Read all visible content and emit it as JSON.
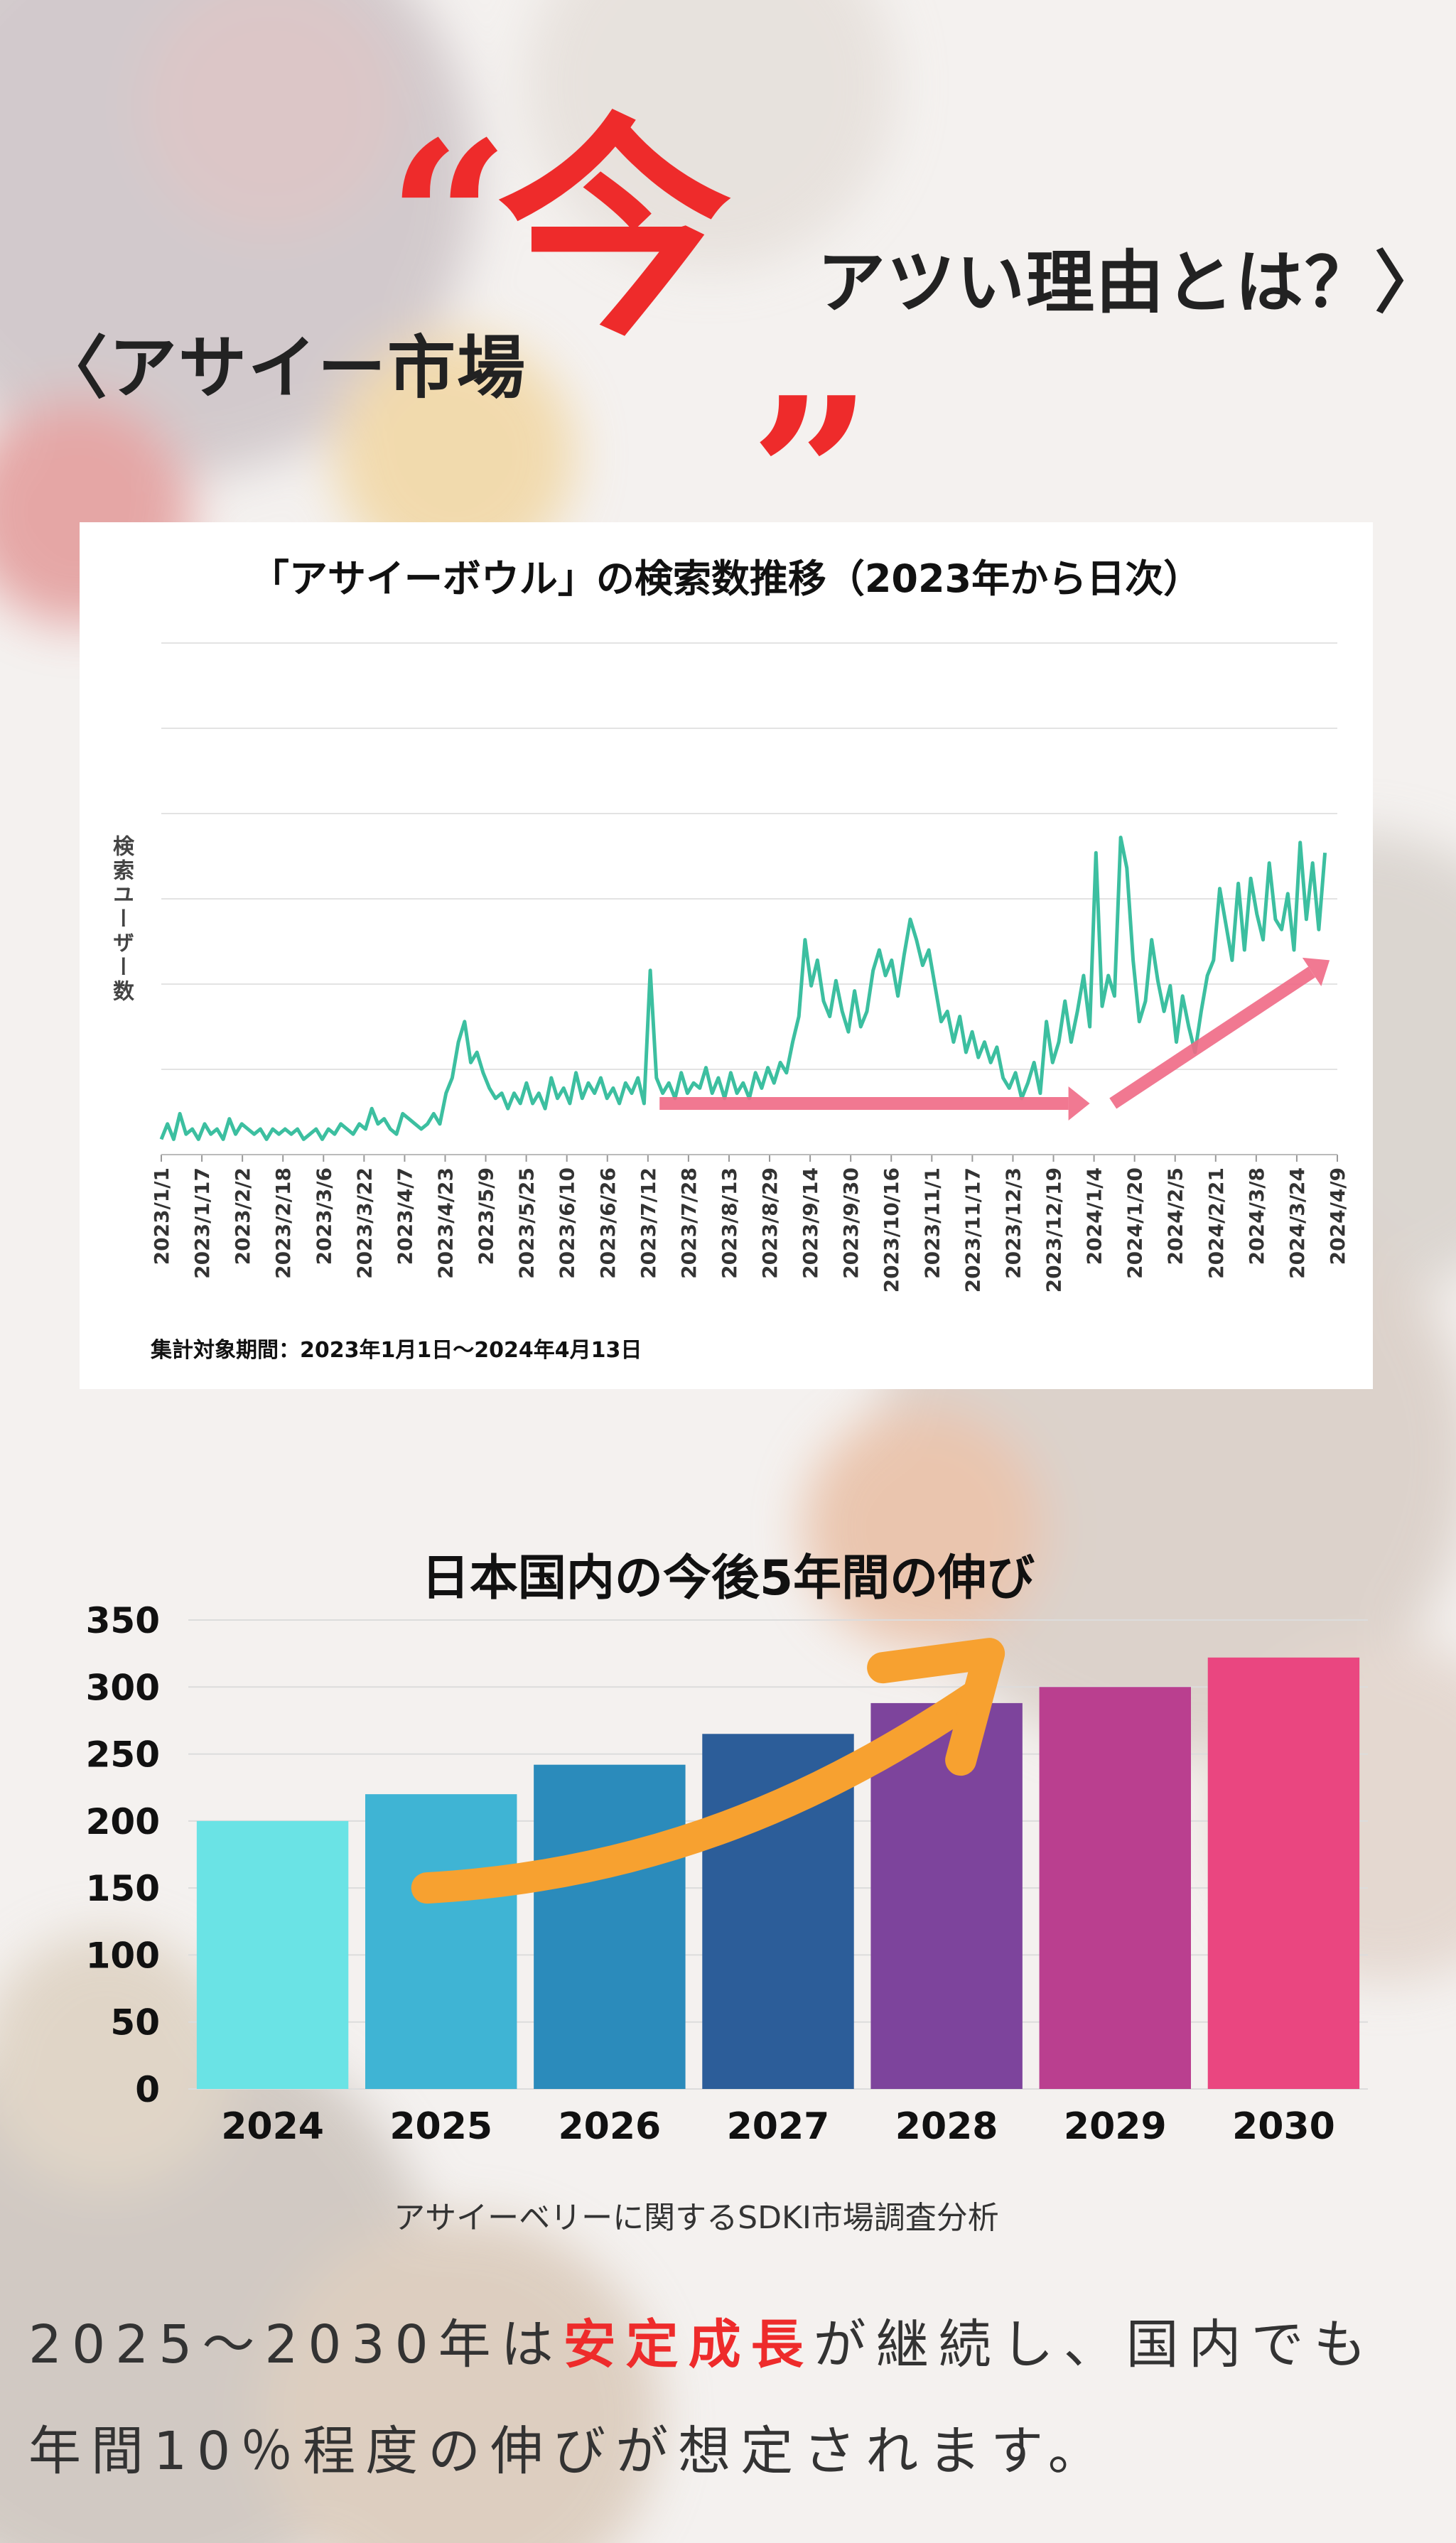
{
  "headline": {
    "left": "〈アサイー市場",
    "open_quote": "“",
    "big": "今",
    "close_quote": "”",
    "right": "アツい理由とは？〉"
  },
  "chart_data": [
    {
      "type": "line",
      "title": "「アサイーボウル」の検索数推移（2023年から日次）",
      "ylabel": "検索ユーザー数",
      "x_ticks": [
        "2023/1/1",
        "2023/1/17",
        "2023/2/2",
        "2023/2/18",
        "2023/3/6",
        "2023/3/22",
        "2023/4/7",
        "2023/4/23",
        "2023/5/9",
        "2023/5/25",
        "2023/6/10",
        "2023/6/26",
        "2023/7/12",
        "2023/7/28",
        "2023/8/13",
        "2023/8/29",
        "2023/9/14",
        "2023/9/30",
        "2023/10/16",
        "2023/11/1",
        "2023/11/17",
        "2023/12/3",
        "2023/12/19",
        "2024/1/4",
        "2024/1/20",
        "2024/2/5",
        "2024/2/21",
        "2024/3/8",
        "2024/3/24",
        "2024/4/9"
      ],
      "ylim": [
        0,
        100
      ],
      "grid": true,
      "series_color": "#3cbfa0",
      "trend_color": "#f06a86",
      "footnote": "集計対象期間：2023年1月1日～2024年4月13日",
      "series": [
        {
          "points": [
            [
              0,
              3
            ],
            [
              4,
              6
            ],
            [
              8,
              3
            ],
            [
              12,
              8
            ],
            [
              16,
              4
            ],
            [
              20,
              5
            ],
            [
              24,
              3
            ],
            [
              28,
              6
            ],
            [
              32,
              4
            ],
            [
              36,
              5
            ],
            [
              40,
              3
            ],
            [
              44,
              7
            ],
            [
              48,
              4
            ],
            [
              52,
              6
            ],
            [
              56,
              5
            ],
            [
              60,
              4
            ],
            [
              64,
              5
            ],
            [
              68,
              3
            ],
            [
              72,
              5
            ],
            [
              76,
              4
            ],
            [
              80,
              5
            ],
            [
              84,
              4
            ],
            [
              88,
              5
            ],
            [
              92,
              3
            ],
            [
              96,
              4
            ],
            [
              100,
              5
            ],
            [
              104,
              3
            ],
            [
              108,
              5
            ],
            [
              112,
              4
            ],
            [
              116,
              6
            ],
            [
              120,
              5
            ],
            [
              124,
              4
            ],
            [
              128,
              6
            ],
            [
              132,
              5
            ],
            [
              136,
              9
            ],
            [
              140,
              6
            ],
            [
              144,
              7
            ],
            [
              148,
              5
            ],
            [
              152,
              4
            ],
            [
              156,
              8
            ],
            [
              160,
              7
            ],
            [
              164,
              6
            ],
            [
              168,
              5
            ],
            [
              172,
              6
            ],
            [
              176,
              8
            ],
            [
              180,
              6
            ],
            [
              184,
              12
            ],
            [
              188,
              15
            ],
            [
              192,
              22
            ],
            [
              196,
              26
            ],
            [
              200,
              18
            ],
            [
              204,
              20
            ],
            [
              208,
              16
            ],
            [
              212,
              13
            ],
            [
              216,
              11
            ],
            [
              220,
              12
            ],
            [
              224,
              9
            ],
            [
              228,
              12
            ],
            [
              232,
              10
            ],
            [
              236,
              14
            ],
            [
              240,
              10
            ],
            [
              244,
              12
            ],
            [
              248,
              9
            ],
            [
              252,
              15
            ],
            [
              256,
              11
            ],
            [
              260,
              13
            ],
            [
              264,
              10
            ],
            [
              268,
              16
            ],
            [
              272,
              11
            ],
            [
              276,
              14
            ],
            [
              280,
              12
            ],
            [
              284,
              15
            ],
            [
              288,
              11
            ],
            [
              292,
              13
            ],
            [
              296,
              10
            ],
            [
              300,
              14
            ],
            [
              304,
              12
            ],
            [
              308,
              15
            ],
            [
              312,
              10
            ],
            [
              316,
              36
            ],
            [
              320,
              15
            ],
            [
              324,
              12
            ],
            [
              328,
              14
            ],
            [
              332,
              11
            ],
            [
              336,
              16
            ],
            [
              340,
              12
            ],
            [
              344,
              14
            ],
            [
              348,
              13
            ],
            [
              352,
              17
            ],
            [
              356,
              12
            ],
            [
              360,
              15
            ],
            [
              364,
              11
            ],
            [
              368,
              16
            ],
            [
              372,
              12
            ],
            [
              376,
              14
            ],
            [
              380,
              11
            ],
            [
              384,
              16
            ],
            [
              388,
              13
            ],
            [
              392,
              17
            ],
            [
              396,
              14
            ],
            [
              400,
              18
            ],
            [
              404,
              16
            ],
            [
              408,
              22
            ],
            [
              412,
              27
            ],
            [
              416,
              42
            ],
            [
              420,
              33
            ],
            [
              424,
              38
            ],
            [
              428,
              30
            ],
            [
              432,
              27
            ],
            [
              436,
              34
            ],
            [
              440,
              28
            ],
            [
              444,
              24
            ],
            [
              448,
              32
            ],
            [
              452,
              25
            ],
            [
              456,
              28
            ],
            [
              460,
              36
            ],
            [
              464,
              40
            ],
            [
              468,
              35
            ],
            [
              472,
              38
            ],
            [
              476,
              31
            ],
            [
              480,
              39
            ],
            [
              484,
              46
            ],
            [
              488,
              42
            ],
            [
              492,
              37
            ],
            [
              496,
              40
            ],
            [
              500,
              33
            ],
            [
              504,
              26
            ],
            [
              508,
              28
            ],
            [
              512,
              22
            ],
            [
              516,
              27
            ],
            [
              520,
              20
            ],
            [
              524,
              24
            ],
            [
              528,
              19
            ],
            [
              532,
              22
            ],
            [
              536,
              18
            ],
            [
              540,
              21
            ],
            [
              544,
              15
            ],
            [
              548,
              13
            ],
            [
              552,
              16
            ],
            [
              556,
              11
            ],
            [
              560,
              14
            ],
            [
              564,
              18
            ],
            [
              568,
              12
            ],
            [
              572,
              26
            ],
            [
              576,
              18
            ],
            [
              580,
              22
            ],
            [
              584,
              30
            ],
            [
              588,
              22
            ],
            [
              592,
              28
            ],
            [
              596,
              35
            ],
            [
              600,
              25
            ],
            [
              604,
              59
            ],
            [
              608,
              29
            ],
            [
              612,
              35
            ],
            [
              616,
              31
            ],
            [
              620,
              62
            ],
            [
              624,
              56
            ],
            [
              628,
              38
            ],
            [
              632,
              26
            ],
            [
              636,
              30
            ],
            [
              640,
              42
            ],
            [
              644,
              34
            ],
            [
              648,
              28
            ],
            [
              652,
              33
            ],
            [
              656,
              22
            ],
            [
              660,
              31
            ],
            [
              664,
              25
            ],
            [
              668,
              20
            ],
            [
              672,
              28
            ],
            [
              676,
              35
            ],
            [
              680,
              38
            ],
            [
              684,
              52
            ],
            [
              688,
              45
            ],
            [
              692,
              38
            ],
            [
              696,
              53
            ],
            [
              700,
              40
            ],
            [
              704,
              54
            ],
            [
              708,
              47
            ],
            [
              712,
              42
            ],
            [
              716,
              57
            ],
            [
              720,
              46
            ],
            [
              724,
              44
            ],
            [
              728,
              51
            ],
            [
              732,
              40
            ],
            [
              736,
              61
            ],
            [
              740,
              46
            ],
            [
              744,
              57
            ],
            [
              748,
              44
            ],
            [
              752,
              59
            ]
          ]
        }
      ],
      "trend_arrows": [
        [
          [
            322,
            10
          ],
          [
            600,
            10
          ]
        ],
        [
          [
            615,
            10
          ],
          [
            755,
            38
          ]
        ]
      ]
    },
    {
      "type": "bar",
      "title": "日本国内の今後5年間の伸び",
      "categories": [
        "2024",
        "2025",
        "2026",
        "2027",
        "2028",
        "2029",
        "2030"
      ],
      "values": [
        200,
        220,
        242,
        265,
        288,
        300,
        322
      ],
      "ylim": [
        0,
        350
      ],
      "y_ticks": [
        "0",
        "50",
        "100",
        "150",
        "200",
        "250",
        "300",
        "350"
      ],
      "grid": true,
      "bar_colors": [
        "#6ae3e5",
        "#3fb4d4",
        "#2b8bbb",
        "#2c5d99",
        "#7d449c",
        "#ba3f8f",
        "#ea4680"
      ],
      "arrow_color": "#f7a130",
      "source": "アサイーベリーに関するSDKI市場調査分析"
    }
  ],
  "body": {
    "line1_pre": "2025～2030年は",
    "line1_highlight": "安定成長",
    "line1_post": "が継続し、国内でも",
    "line2": "年間10％程度の伸びが想定されます。"
  }
}
